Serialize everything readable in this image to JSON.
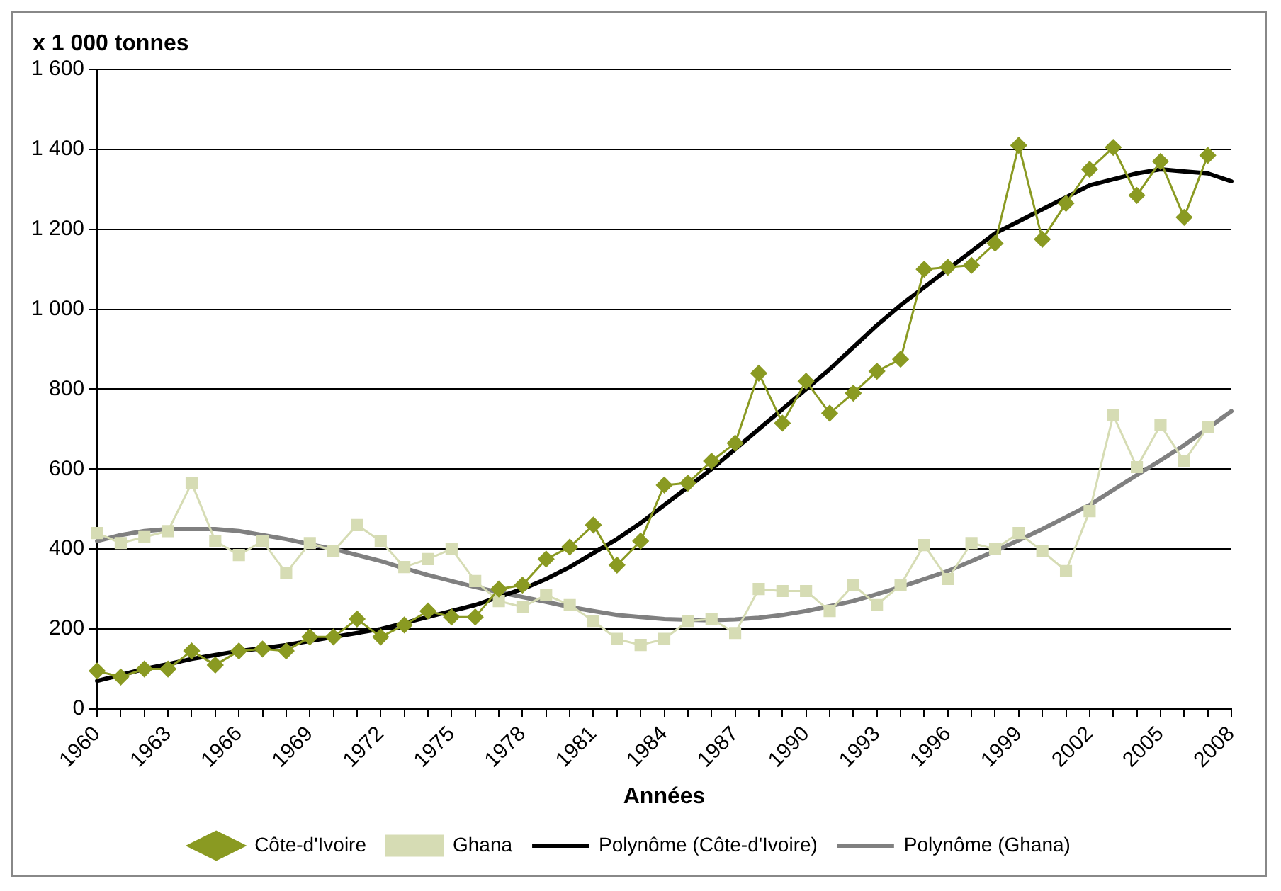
{
  "chart_data": {
    "type": "line",
    "ylabel": "x 1 000 tonnes",
    "xlabel": "Années",
    "categories": [
      "1960",
      null,
      null,
      "1963",
      null,
      null,
      "1966",
      null,
      null,
      "1969",
      null,
      null,
      "1972",
      null,
      null,
      "1975",
      null,
      null,
      "1978",
      null,
      null,
      "1981",
      null,
      null,
      "1984",
      null,
      null,
      "1987",
      null,
      null,
      "1990",
      null,
      null,
      "1993",
      null,
      null,
      "1996",
      null,
      null,
      "1999",
      null,
      null,
      "2002",
      null,
      null,
      "2005",
      null,
      null,
      "2008"
    ],
    "series": [
      {
        "name": "Côte-d'Ivoire",
        "color": "#8a9a22",
        "marker": "diamond",
        "values": [
          95,
          80,
          100,
          100,
          145,
          110,
          145,
          150,
          145,
          180,
          180,
          225,
          180,
          210,
          245,
          230,
          230,
          300,
          310,
          375,
          405,
          460,
          360,
          420,
          560,
          565,
          620,
          665,
          840,
          715,
          820,
          740,
          790,
          845,
          875,
          1100,
          1105,
          1110,
          1165,
          1410,
          1175,
          1265,
          1350,
          1405,
          1285,
          1370,
          1230,
          1385,
          null
        ]
      },
      {
        "name": "Ghana",
        "color": "#d6dcb4",
        "marker": "square",
        "values": [
          440,
          415,
          430,
          445,
          565,
          420,
          385,
          420,
          340,
          415,
          395,
          460,
          420,
          355,
          375,
          400,
          320,
          270,
          255,
          285,
          260,
          220,
          175,
          160,
          175,
          220,
          225,
          190,
          300,
          295,
          295,
          245,
          310,
          260,
          310,
          410,
          325,
          415,
          400,
          440,
          395,
          345,
          495,
          735,
          605,
          710,
          620,
          705,
          null
        ]
      },
      {
        "name": "Polynôme (Côte-d'Ivoire)",
        "color": "#000000",
        "marker": "none",
        "values": [
          70,
          85,
          100,
          112,
          125,
          135,
          145,
          152,
          160,
          170,
          180,
          190,
          200,
          215,
          230,
          245,
          260,
          280,
          300,
          325,
          355,
          390,
          425,
          465,
          510,
          555,
          600,
          650,
          700,
          750,
          800,
          850,
          905,
          960,
          1010,
          1055,
          1100,
          1145,
          1190,
          1220,
          1250,
          1280,
          1310,
          1325,
          1340,
          1350,
          1345,
          1340,
          1320
        ]
      },
      {
        "name": "Polynôme (Ghana)",
        "color": "#808080",
        "marker": "none",
        "values": [
          420,
          435,
          445,
          450,
          450,
          450,
          445,
          435,
          425,
          412,
          400,
          385,
          370,
          352,
          335,
          320,
          305,
          292,
          280,
          268,
          255,
          245,
          235,
          230,
          225,
          223,
          222,
          224,
          228,
          235,
          245,
          257,
          270,
          287,
          305,
          325,
          345,
          370,
          395,
          422,
          450,
          480,
          510,
          548,
          585,
          622,
          660,
          702,
          745
        ]
      }
    ],
    "ylim": [
      0,
      1600
    ],
    "yticks": [
      0,
      200,
      400,
      600,
      800,
      {
        "value": 1000,
        "label": "1 000"
      },
      {
        "value": 1200,
        "label": "1 200"
      },
      {
        "value": 1400,
        "label": "1 400"
      },
      {
        "value": 1600,
        "label": "1 600"
      }
    ],
    "grid": "y",
    "legend": "bottom",
    "line_style": "solid"
  }
}
